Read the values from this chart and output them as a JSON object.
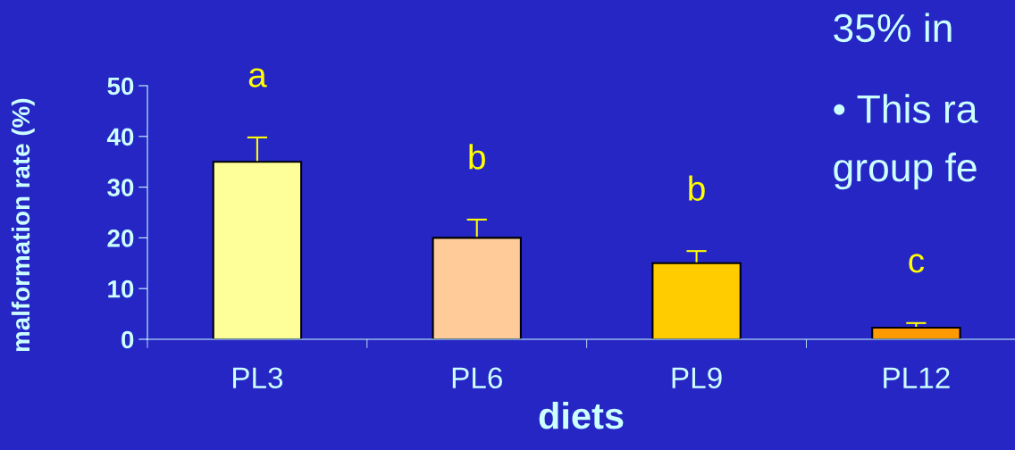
{
  "chart_data": {
    "type": "bar",
    "xlabel": "diets",
    "ylabel": "malformation rate (%)",
    "categories": [
      "PL3",
      "PL6",
      "PL9",
      "PL12"
    ],
    "values": [
      35,
      20,
      15,
      2.3
    ],
    "errors": [
      4.8,
      3.6,
      2.4,
      0.9
    ],
    "colors": [
      "#ffff99",
      "#ffcc99",
      "#ffcc00",
      "#ff9900"
    ],
    "ylim": [
      0,
      50
    ],
    "yticks": [
      0,
      10,
      20,
      30,
      40,
      50
    ],
    "grid": false,
    "legend": false,
    "annotations": [
      "a",
      "b",
      "b",
      "c",
      "35% in",
      "• This ra",
      "group fe"
    ]
  }
}
